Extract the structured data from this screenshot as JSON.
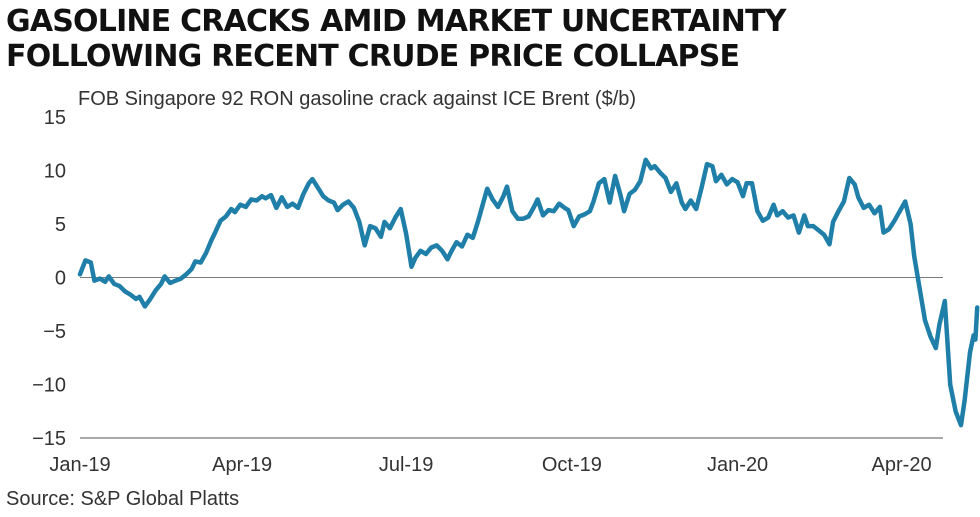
{
  "chart_data": {
    "type": "line",
    "title": "GASOLINE CRACKS AMID MARKET UNCERTAINTY FOLLOWING RECENT CRUDE PRICE COLLAPSE",
    "subtitle": "FOB Singapore 92 RON gasoline crack against ICE Brent ($/b)",
    "source": "Source: S&P Global Platts",
    "xlabel": "",
    "ylabel": "",
    "ylim": [
      -15,
      15
    ],
    "y_ticks": [
      15,
      10,
      5,
      0,
      -5,
      -10,
      -15
    ],
    "x_ticks": [
      "Jan-19",
      "Apr-19",
      "Jul-19",
      "Oct-19",
      "Jan-20",
      "Apr-20"
    ],
    "x_range": [
      "2019-01-01",
      "2020-04-24"
    ],
    "grid": false,
    "zero_line": true,
    "line_color": "#1f7fa8",
    "series": [
      {
        "values": [
          [
            "2019-01-01",
            0.3
          ],
          [
            "2019-01-04",
            1.6
          ],
          [
            "2019-01-07",
            1.4
          ],
          [
            "2019-01-09",
            -0.3
          ],
          [
            "2019-01-12",
            -0.1
          ],
          [
            "2019-01-15",
            -0.4
          ],
          [
            "2019-01-17",
            0.1
          ],
          [
            "2019-01-20",
            -0.6
          ],
          [
            "2019-01-23",
            -0.8
          ],
          [
            "2019-01-26",
            -1.3
          ],
          [
            "2019-01-29",
            -1.6
          ],
          [
            "2019-02-01",
            -2.0
          ],
          [
            "2019-02-03",
            -1.8
          ],
          [
            "2019-02-06",
            -2.7
          ],
          [
            "2019-02-09",
            -2.0
          ],
          [
            "2019-02-12",
            -1.2
          ],
          [
            "2019-02-15",
            -0.6
          ],
          [
            "2019-02-17",
            0.1
          ],
          [
            "2019-02-20",
            -0.5
          ],
          [
            "2019-02-23",
            -0.3
          ],
          [
            "2019-02-26",
            -0.1
          ],
          [
            "2019-03-01",
            0.3
          ],
          [
            "2019-03-04",
            0.8
          ],
          [
            "2019-03-06",
            1.5
          ],
          [
            "2019-03-09",
            1.4
          ],
          [
            "2019-03-12",
            2.3
          ],
          [
            "2019-03-15",
            3.5
          ],
          [
            "2019-03-17",
            4.2
          ],
          [
            "2019-03-20",
            5.3
          ],
          [
            "2019-03-23",
            5.7
          ],
          [
            "2019-03-26",
            6.4
          ],
          [
            "2019-03-28",
            6.1
          ],
          [
            "2019-03-31",
            6.8
          ],
          [
            "2019-04-03",
            6.6
          ],
          [
            "2019-04-06",
            7.3
          ],
          [
            "2019-04-09",
            7.2
          ],
          [
            "2019-04-12",
            7.6
          ],
          [
            "2019-04-14",
            7.4
          ],
          [
            "2019-04-17",
            7.7
          ],
          [
            "2019-04-20",
            6.5
          ],
          [
            "2019-04-23",
            7.5
          ],
          [
            "2019-04-26",
            6.6
          ],
          [
            "2019-04-29",
            6.9
          ],
          [
            "2019-05-02",
            6.5
          ],
          [
            "2019-05-05",
            7.8
          ],
          [
            "2019-05-08",
            8.8
          ],
          [
            "2019-05-10",
            9.2
          ],
          [
            "2019-05-13",
            8.4
          ],
          [
            "2019-05-16",
            7.6
          ],
          [
            "2019-05-19",
            7.2
          ],
          [
            "2019-05-22",
            7.0
          ],
          [
            "2019-05-24",
            6.3
          ],
          [
            "2019-05-27",
            6.8
          ],
          [
            "2019-05-30",
            7.1
          ],
          [
            "2019-06-02",
            6.5
          ],
          [
            "2019-06-05",
            5.2
          ],
          [
            "2019-06-08",
            3.0
          ],
          [
            "2019-06-11",
            4.8
          ],
          [
            "2019-06-14",
            4.6
          ],
          [
            "2019-06-17",
            3.8
          ],
          [
            "2019-06-19",
            5.2
          ],
          [
            "2019-06-22",
            4.6
          ],
          [
            "2019-06-25",
            5.6
          ],
          [
            "2019-06-28",
            6.4
          ],
          [
            "2019-07-01",
            4.1
          ],
          [
            "2019-07-04",
            1.0
          ],
          [
            "2019-07-06",
            1.8
          ],
          [
            "2019-07-09",
            2.5
          ],
          [
            "2019-07-12",
            2.2
          ],
          [
            "2019-07-15",
            2.8
          ],
          [
            "2019-07-18",
            3.0
          ],
          [
            "2019-07-21",
            2.5
          ],
          [
            "2019-07-24",
            1.7
          ],
          [
            "2019-07-26",
            2.4
          ],
          [
            "2019-07-29",
            3.3
          ],
          [
            "2019-08-01",
            2.9
          ],
          [
            "2019-08-04",
            4.0
          ],
          [
            "2019-08-07",
            3.7
          ],
          [
            "2019-08-10",
            5.3
          ],
          [
            "2019-08-12",
            6.5
          ],
          [
            "2019-08-15",
            8.3
          ],
          [
            "2019-08-18",
            7.3
          ],
          [
            "2019-08-21",
            6.6
          ],
          [
            "2019-08-24",
            7.6
          ],
          [
            "2019-08-26",
            8.5
          ],
          [
            "2019-08-29",
            6.2
          ],
          [
            "2019-09-01",
            5.5
          ],
          [
            "2019-09-04",
            5.5
          ],
          [
            "2019-09-07",
            5.7
          ],
          [
            "2019-09-10",
            6.6
          ],
          [
            "2019-09-12",
            7.3
          ],
          [
            "2019-09-15",
            5.8
          ],
          [
            "2019-09-18",
            6.3
          ],
          [
            "2019-09-21",
            6.2
          ],
          [
            "2019-09-24",
            6.9
          ],
          [
            "2019-09-27",
            6.5
          ],
          [
            "2019-09-29",
            6.3
          ],
          [
            "2019-10-02",
            4.8
          ],
          [
            "2019-10-05",
            5.7
          ],
          [
            "2019-10-08",
            5.9
          ],
          [
            "2019-10-11",
            6.2
          ],
          [
            "2019-10-13",
            7.1
          ],
          [
            "2019-10-16",
            8.8
          ],
          [
            "2019-10-19",
            9.2
          ],
          [
            "2019-10-22",
            7.0
          ],
          [
            "2019-10-25",
            9.5
          ],
          [
            "2019-10-28",
            7.7
          ],
          [
            "2019-10-30",
            6.2
          ],
          [
            "2019-11-02",
            7.8
          ],
          [
            "2019-11-05",
            8.2
          ],
          [
            "2019-11-08",
            9.0
          ],
          [
            "2019-11-11",
            11.0
          ],
          [
            "2019-11-14",
            10.2
          ],
          [
            "2019-11-16",
            10.4
          ],
          [
            "2019-11-19",
            9.8
          ],
          [
            "2019-11-22",
            9.3
          ],
          [
            "2019-11-25",
            8.0
          ],
          [
            "2019-11-28",
            8.8
          ],
          [
            "2019-12-01",
            7.0
          ],
          [
            "2019-12-03",
            6.4
          ],
          [
            "2019-12-06",
            7.2
          ],
          [
            "2019-12-09",
            6.4
          ],
          [
            "2019-12-12",
            8.4
          ],
          [
            "2019-12-15",
            10.6
          ],
          [
            "2019-12-18",
            10.4
          ],
          [
            "2019-12-20",
            9.0
          ],
          [
            "2019-12-23",
            9.6
          ],
          [
            "2019-12-26",
            8.7
          ],
          [
            "2019-12-29",
            9.2
          ],
          [
            "2020-01-01",
            8.9
          ],
          [
            "2020-01-04",
            7.6
          ],
          [
            "2020-01-06",
            8.8
          ],
          [
            "2020-01-09",
            8.8
          ],
          [
            "2020-01-12",
            6.2
          ],
          [
            "2020-01-15",
            5.3
          ],
          [
            "2020-01-18",
            5.6
          ],
          [
            "2020-01-21",
            6.8
          ],
          [
            "2020-01-23",
            5.8
          ],
          [
            "2020-01-26",
            6.2
          ],
          [
            "2020-01-29",
            5.6
          ],
          [
            "2020-02-01",
            5.8
          ],
          [
            "2020-02-04",
            4.2
          ],
          [
            "2020-02-07",
            5.8
          ],
          [
            "2020-02-09",
            4.8
          ],
          [
            "2020-02-12",
            4.8
          ],
          [
            "2020-02-15",
            4.4
          ],
          [
            "2020-02-18",
            4.0
          ],
          [
            "2020-02-21",
            3.1
          ],
          [
            "2020-02-23",
            5.2
          ],
          [
            "2020-02-26",
            6.2
          ],
          [
            "2020-02-29",
            7.1
          ],
          [
            "2020-03-03",
            9.3
          ],
          [
            "2020-03-06",
            8.7
          ],
          [
            "2020-03-08",
            7.5
          ],
          [
            "2020-03-11",
            6.5
          ],
          [
            "2020-03-14",
            6.8
          ],
          [
            "2020-03-17",
            6.0
          ],
          [
            "2020-03-20",
            6.6
          ],
          [
            "2020-03-22",
            4.2
          ],
          [
            "2020-03-25",
            4.5
          ],
          [
            "2020-03-28",
            5.3
          ],
          [
            "2020-03-31",
            6.2
          ],
          [
            "2020-04-03",
            7.1
          ],
          [
            "2020-04-06",
            5.0
          ],
          [
            "2020-04-08",
            2.0
          ],
          [
            "2020-04-11",
            -1.0
          ],
          [
            "2020-04-14",
            -4.0
          ],
          [
            "2020-04-17",
            -5.5
          ],
          [
            "2020-04-20",
            -6.6
          ],
          [
            "2020-04-22",
            -4.4
          ],
          [
            "2020-04-25",
            -2.2
          ],
          [
            "2020-04-28",
            -10.0
          ],
          [
            "2020-05-01",
            -12.5
          ],
          [
            "2020-05-04",
            -13.8
          ],
          [
            "2020-05-06",
            -11.5
          ],
          [
            "2020-05-09",
            -7.0
          ],
          [
            "2020-05-11",
            -5.4
          ],
          [
            "2020-05-12",
            -5.8
          ],
          [
            "2020-05-13",
            -2.8
          ]
        ]
      }
    ]
  }
}
